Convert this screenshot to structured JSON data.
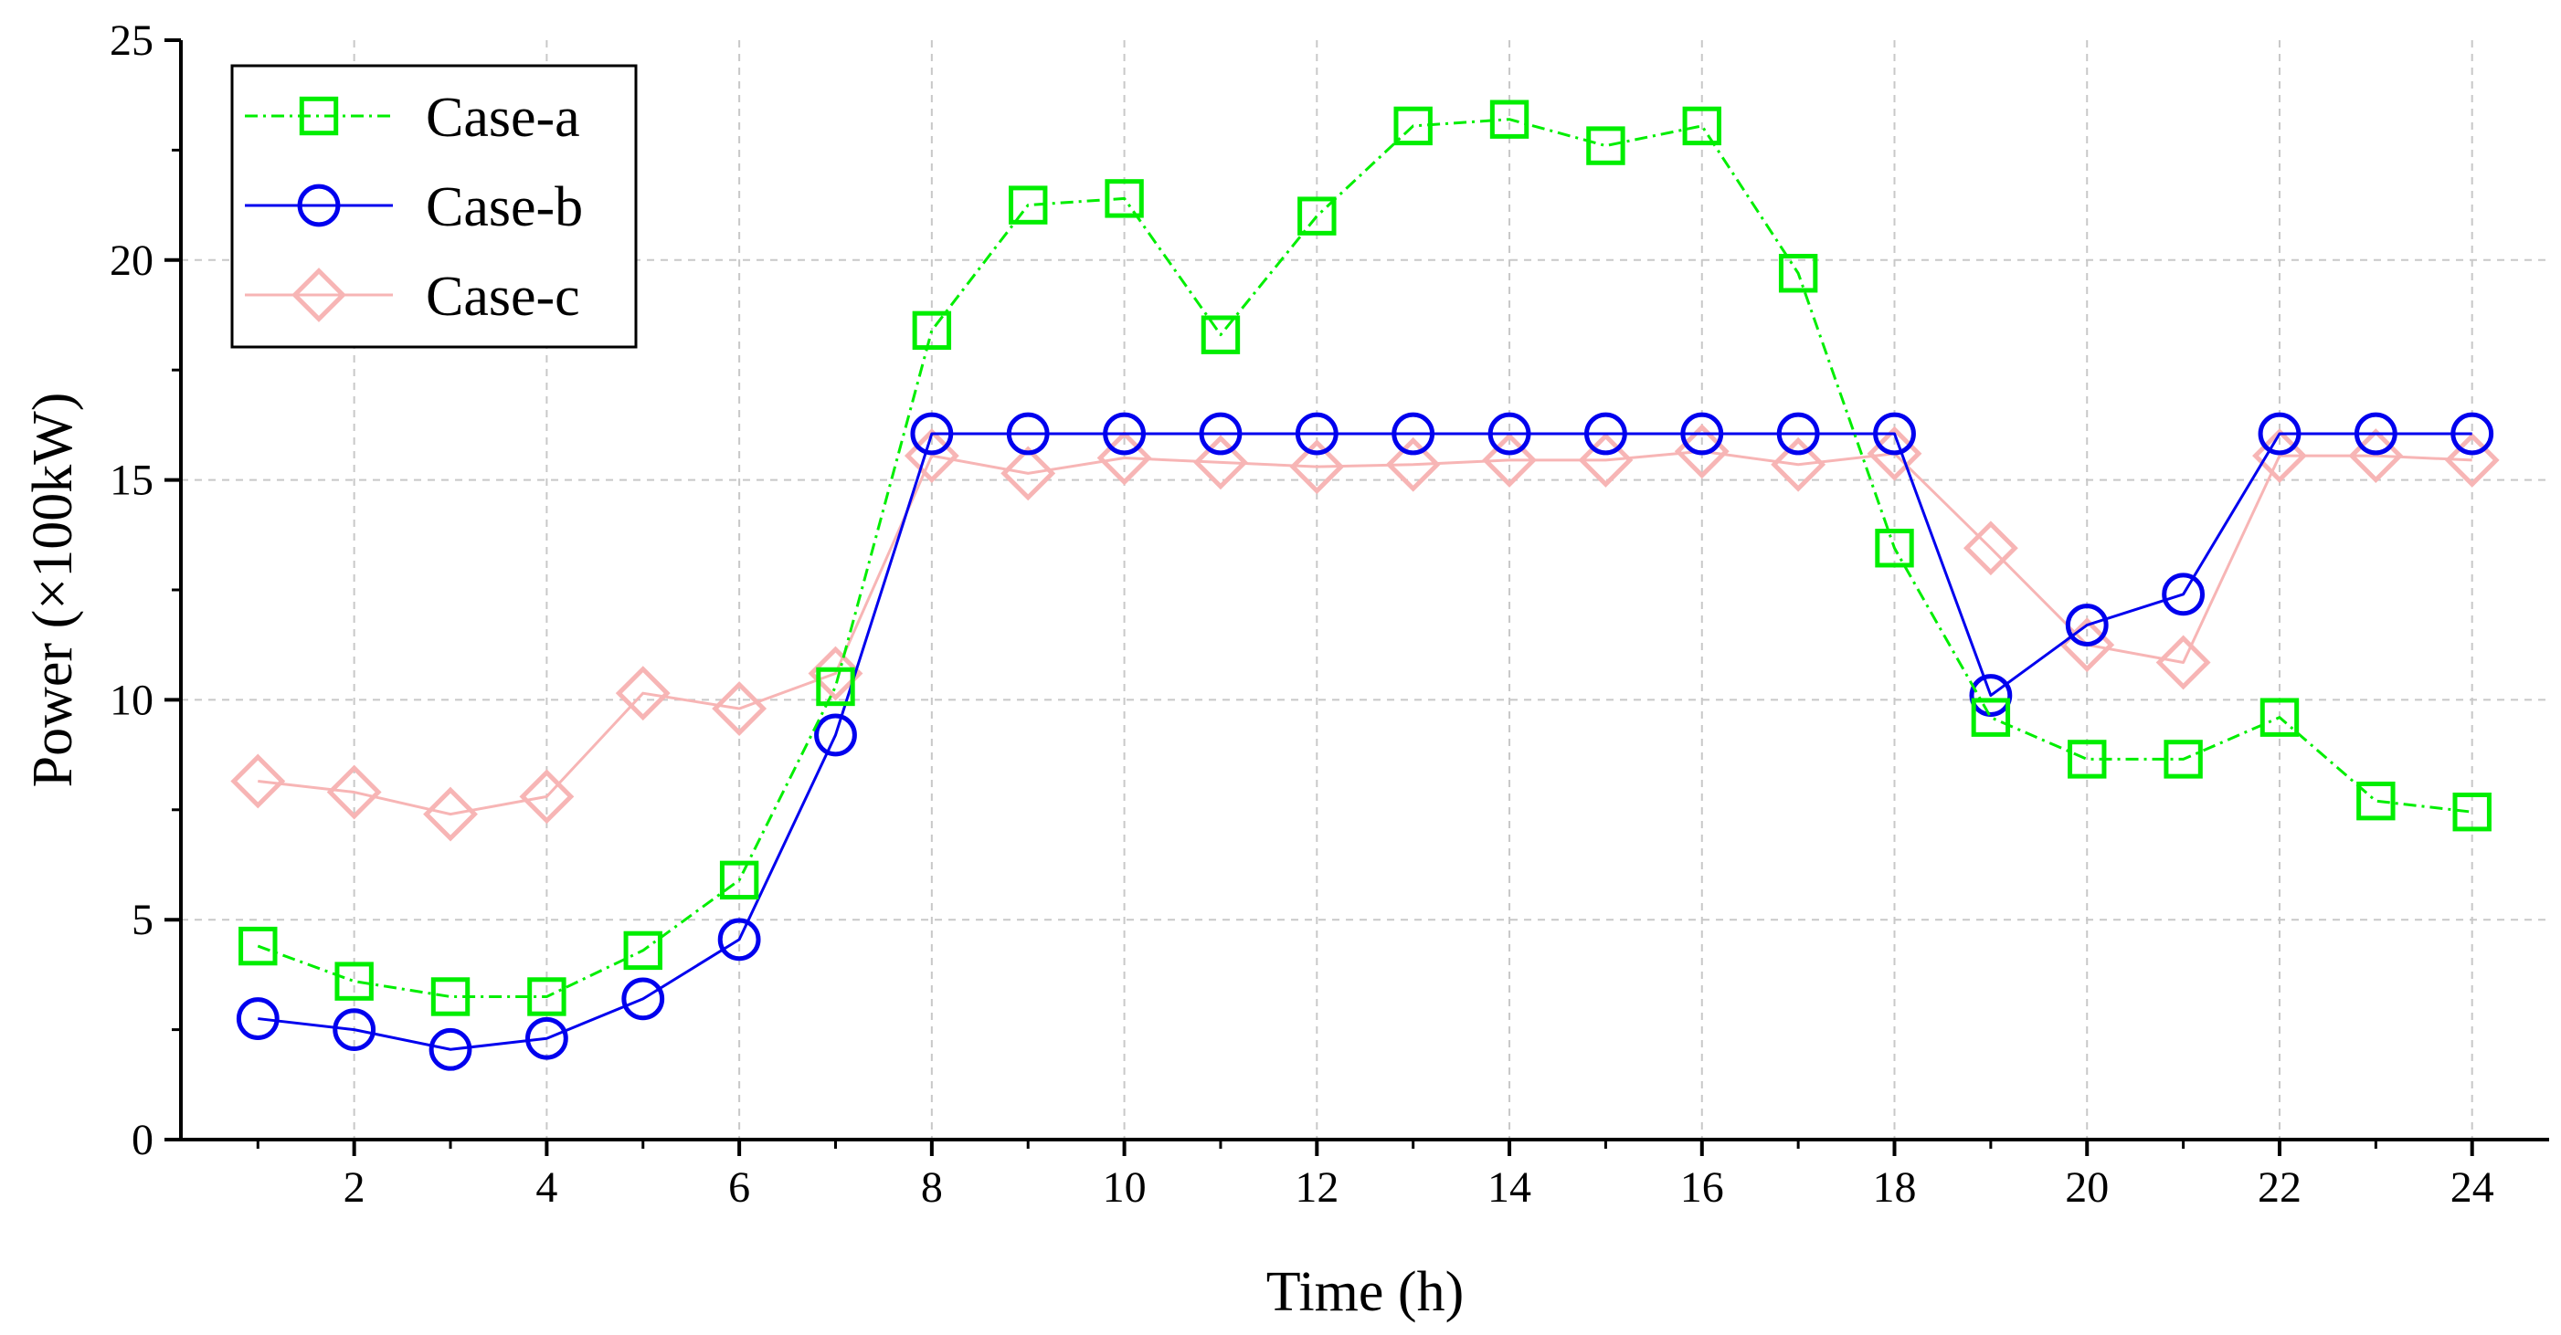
{
  "chart_data": {
    "type": "line",
    "title": "",
    "xlabel": "Time (h)",
    "ylabel": "Power (×100kW)",
    "x": [
      1,
      2,
      3,
      4,
      5,
      6,
      7,
      8,
      9,
      10,
      11,
      12,
      13,
      14,
      15,
      16,
      17,
      18,
      19,
      20,
      21,
      22,
      23,
      24
    ],
    "xlim": [
      0.2,
      24.8
    ],
    "ylim": [
      0,
      25
    ],
    "xticks": [
      2,
      4,
      6,
      8,
      10,
      12,
      14,
      16,
      18,
      20,
      22,
      24
    ],
    "xtick_labels": [
      "2",
      "4",
      "6",
      "8",
      "10",
      "12",
      "14",
      "16",
      "18",
      "20",
      "22",
      "24"
    ],
    "yticks": [
      0,
      5,
      10,
      15,
      20,
      25
    ],
    "ytick_labels": [
      "0",
      "5",
      "10",
      "15",
      "20",
      "25"
    ],
    "grid": true,
    "legend_position": "top-left",
    "series": [
      {
        "name": "Case-a",
        "color": "#00ee00",
        "line_style": "dash-dot",
        "marker": "square",
        "values": [
          4.4,
          3.6,
          3.25,
          3.25,
          4.3,
          5.9,
          10.3,
          18.4,
          21.25,
          21.4,
          18.3,
          21.0,
          23.05,
          23.2,
          22.6,
          23.05,
          19.7,
          13.45,
          9.6,
          8.65,
          8.65,
          9.6,
          7.7,
          7.45
        ]
      },
      {
        "name": "Case-b",
        "color": "#0000ee",
        "line_style": "solid",
        "marker": "circle",
        "values": [
          2.75,
          2.5,
          2.05,
          2.3,
          3.2,
          4.55,
          9.2,
          16.05,
          16.05,
          16.05,
          16.05,
          16.05,
          16.05,
          16.05,
          16.05,
          16.05,
          16.05,
          16.05,
          10.1,
          11.7,
          12.4,
          16.05,
          16.05,
          16.05
        ]
      },
      {
        "name": "Case-c",
        "color": "#f7b5b5",
        "line_style": "solid",
        "marker": "diamond",
        "values": [
          8.15,
          7.9,
          7.4,
          7.8,
          10.15,
          9.8,
          10.6,
          15.55,
          15.15,
          15.5,
          15.4,
          15.3,
          15.35,
          15.45,
          15.45,
          15.65,
          15.35,
          15.6,
          13.45,
          11.25,
          10.85,
          15.55,
          15.55,
          15.45
        ]
      }
    ]
  }
}
